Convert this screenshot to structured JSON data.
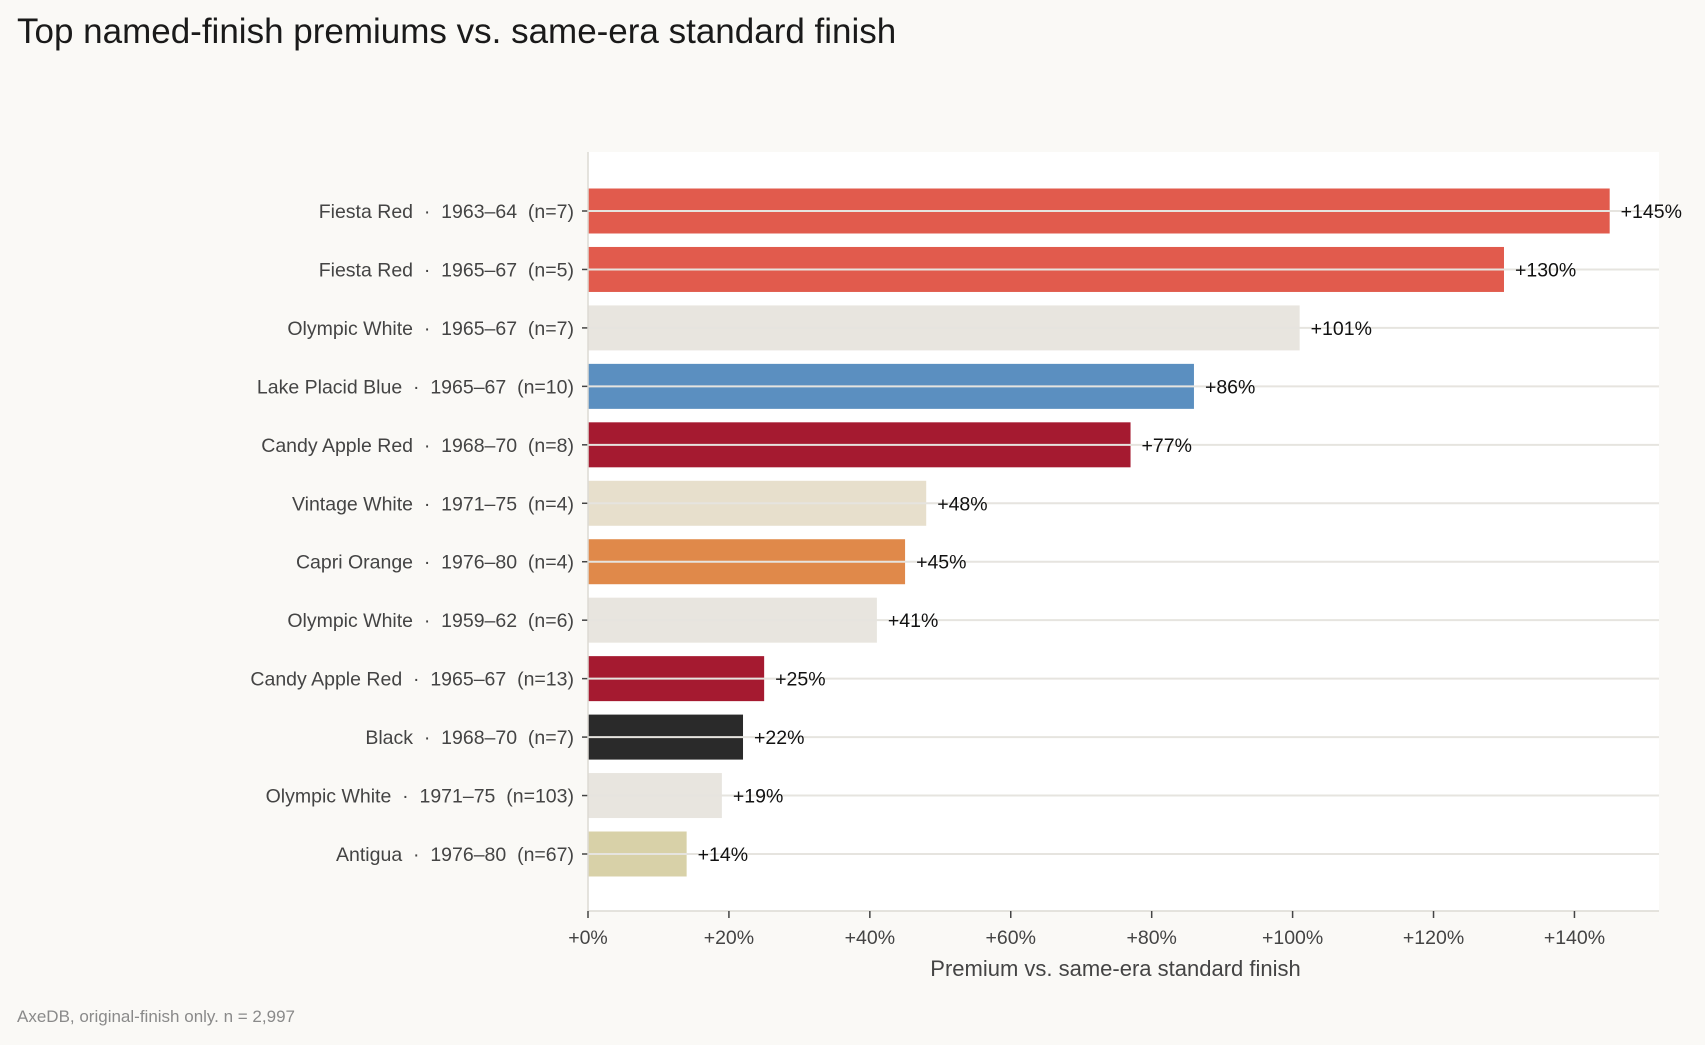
{
  "chart_data": {
    "type": "bar",
    "orientation": "horizontal",
    "title": "Top named-finish premiums vs. same-era standard finish",
    "xlabel": "Premium vs. same-era standard finish",
    "ylabel": "",
    "xlim": [
      0,
      152
    ],
    "xticks": [
      0,
      20,
      40,
      60,
      80,
      100,
      120,
      140
    ],
    "xtick_labels": [
      "+0%",
      "+20%",
      "+40%",
      "+60%",
      "+80%",
      "+100%",
      "+120%",
      "+140%"
    ],
    "grid": "horizontal lines at each bar",
    "categories": [
      "Fiesta Red  ·  1963–64  (n=7)",
      "Fiesta Red  ·  1965–67  (n=5)",
      "Olympic White  ·  1965–67  (n=7)",
      "Lake Placid Blue  ·  1965–67  (n=10)",
      "Candy Apple Red  ·  1968–70  (n=8)",
      "Vintage White  ·  1971–75  (n=4)",
      "Capri Orange  ·  1976–80  (n=4)",
      "Olympic White  ·  1959–62  (n=6)",
      "Candy Apple Red  ·  1965–67  (n=13)",
      "Black  ·  1968–70  (n=7)",
      "Olympic White  ·  1971–75  (n=103)",
      "Antigua  ·  1976–80  (n=67)"
    ],
    "values": [
      145,
      130,
      101,
      86,
      77,
      48,
      45,
      41,
      25,
      22,
      19,
      14
    ],
    "data_labels": [
      "+145%",
      "+130%",
      "+101%",
      "+86%",
      "+77%",
      "+48%",
      "+45%",
      "+41%",
      "+25%",
      "+22%",
      "+19%",
      "+14%"
    ],
    "colors": [
      "#e15b4d",
      "#e15b4d",
      "#e8e5df",
      "#5b8fc0",
      "#a51a30",
      "#e7dfcc",
      "#e0894a",
      "#e8e5df",
      "#a51a30",
      "#2a2a2a",
      "#e8e5df",
      "#d8d1a8"
    ]
  },
  "footnote": "AxeDB, original-finish only. n = 2,997"
}
